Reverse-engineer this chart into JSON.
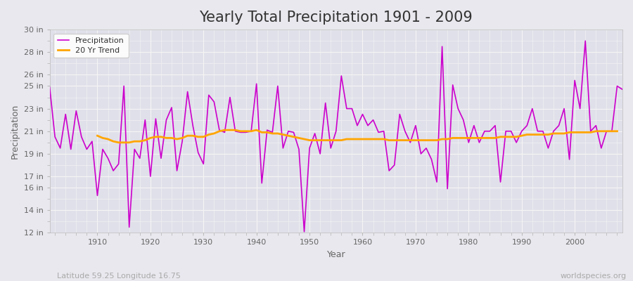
{
  "title": "Yearly Total Precipitation 1901 - 2009",
  "xlabel": "Year",
  "ylabel": "Precipitation",
  "subtitle": "Latitude 59.25 Longitude 16.75",
  "watermark": "worldspecies.org",
  "years": [
    1901,
    1902,
    1903,
    1904,
    1905,
    1906,
    1907,
    1908,
    1909,
    1910,
    1911,
    1912,
    1913,
    1914,
    1915,
    1916,
    1917,
    1918,
    1919,
    1920,
    1921,
    1922,
    1923,
    1924,
    1925,
    1926,
    1927,
    1928,
    1929,
    1930,
    1931,
    1932,
    1933,
    1934,
    1935,
    1936,
    1937,
    1938,
    1939,
    1940,
    1941,
    1942,
    1943,
    1944,
    1945,
    1946,
    1947,
    1948,
    1949,
    1950,
    1951,
    1952,
    1953,
    1954,
    1955,
    1956,
    1957,
    1958,
    1959,
    1960,
    1961,
    1962,
    1963,
    1964,
    1965,
    1966,
    1967,
    1968,
    1969,
    1970,
    1971,
    1972,
    1973,
    1974,
    1975,
    1976,
    1977,
    1978,
    1979,
    1980,
    1981,
    1982,
    1983,
    1984,
    1985,
    1986,
    1987,
    1988,
    1989,
    1990,
    1991,
    1992,
    1993,
    1994,
    1995,
    1996,
    1997,
    1998,
    1999,
    2000,
    2001,
    2002,
    2003,
    2004,
    2005,
    2006,
    2007,
    2008,
    2009
  ],
  "precip": [
    24.9,
    20.5,
    19.5,
    22.5,
    19.4,
    22.8,
    20.5,
    19.4,
    20.1,
    15.3,
    19.4,
    18.6,
    17.5,
    18.1,
    25.0,
    12.5,
    19.4,
    18.6,
    22.0,
    17.0,
    22.1,
    18.6,
    22.0,
    23.1,
    17.5,
    20.1,
    24.5,
    21.5,
    19.1,
    18.1,
    24.2,
    23.6,
    21.1,
    20.9,
    24.0,
    21.0,
    20.9,
    20.9,
    21.0,
    25.2,
    16.4,
    21.1,
    20.9,
    25.0,
    19.5,
    21.0,
    20.9,
    19.4,
    12.1,
    19.5,
    20.8,
    19.0,
    23.5,
    19.5,
    21.0,
    25.9,
    23.0,
    23.0,
    21.5,
    22.5,
    21.5,
    22.0,
    20.9,
    21.0,
    17.5,
    18.0,
    22.5,
    21.0,
    20.0,
    21.5,
    19.0,
    19.5,
    18.5,
    16.5,
    28.5,
    15.9,
    25.1,
    23.0,
    22.0,
    20.0,
    21.5,
    20.0,
    21.0,
    21.0,
    21.5,
    16.5,
    21.0,
    21.0,
    20.0,
    21.0,
    21.5,
    23.0,
    21.0,
    21.0,
    19.5,
    21.0,
    21.5,
    23.0,
    18.5,
    25.5,
    23.0,
    29.0,
    21.0,
    21.5,
    19.5,
    21.0,
    21.0,
    25.0,
    24.7
  ],
  "trend": [
    null,
    null,
    null,
    null,
    null,
    null,
    null,
    null,
    null,
    20.6,
    20.4,
    20.3,
    20.1,
    20.0,
    20.0,
    20.0,
    20.1,
    20.1,
    20.2,
    20.4,
    20.5,
    20.5,
    20.4,
    20.4,
    20.3,
    20.4,
    20.6,
    20.6,
    20.5,
    20.5,
    20.7,
    20.8,
    21.0,
    21.1,
    21.1,
    21.1,
    21.0,
    21.0,
    21.0,
    21.1,
    20.9,
    20.9,
    20.8,
    20.8,
    20.7,
    20.6,
    20.5,
    20.4,
    20.3,
    20.2,
    20.2,
    20.2,
    20.2,
    20.2,
    20.2,
    20.2,
    20.3,
    20.3,
    20.3,
    20.3,
    20.3,
    20.3,
    20.3,
    20.3,
    20.2,
    20.2,
    20.2,
    20.2,
    20.2,
    20.2,
    20.2,
    20.2,
    20.2,
    20.2,
    20.3,
    20.3,
    20.4,
    20.4,
    20.4,
    20.4,
    20.4,
    20.4,
    20.4,
    20.4,
    20.4,
    20.5,
    20.5,
    20.5,
    20.5,
    20.6,
    20.7,
    20.7,
    20.7,
    20.7,
    20.7,
    20.8,
    20.8,
    20.8,
    20.9,
    20.9,
    20.9,
    20.9,
    20.9,
    21.0,
    21.0,
    21.0,
    21.0,
    21.0
  ],
  "precip_color": "#CC00CC",
  "trend_color": "#FFA500",
  "bg_color": "#E8E8EE",
  "plot_bg": "#E0E0EA",
  "grid_color": "#F5F5F5",
  "title_color": "#333333",
  "axis_color": "#666666",
  "legend_text_color": "#333333",
  "watermark_color": "#AAAAAA",
  "subtitle_color": "#AAAAAA",
  "ylim": [
    12,
    30
  ],
  "ytick_values": [
    12,
    14,
    16,
    17,
    19,
    21,
    23,
    25,
    26,
    28,
    30
  ],
  "ytick_labels": [
    "12 in",
    "14 in",
    "16 in",
    "17 in",
    "19 in",
    "21 in",
    "23 in",
    "25 in",
    "26 in",
    "28 in",
    "30 in"
  ],
  "xlim": [
    1901,
    2009
  ],
  "xtick_values": [
    1910,
    1920,
    1930,
    1940,
    1950,
    1960,
    1970,
    1980,
    1990,
    2000
  ],
  "title_fontsize": 15,
  "label_fontsize": 9,
  "tick_fontsize": 8,
  "legend_fontsize": 8,
  "watermark_fontsize": 8,
  "subtitle_fontsize": 8,
  "precip_linewidth": 1.2,
  "trend_linewidth": 2.0
}
